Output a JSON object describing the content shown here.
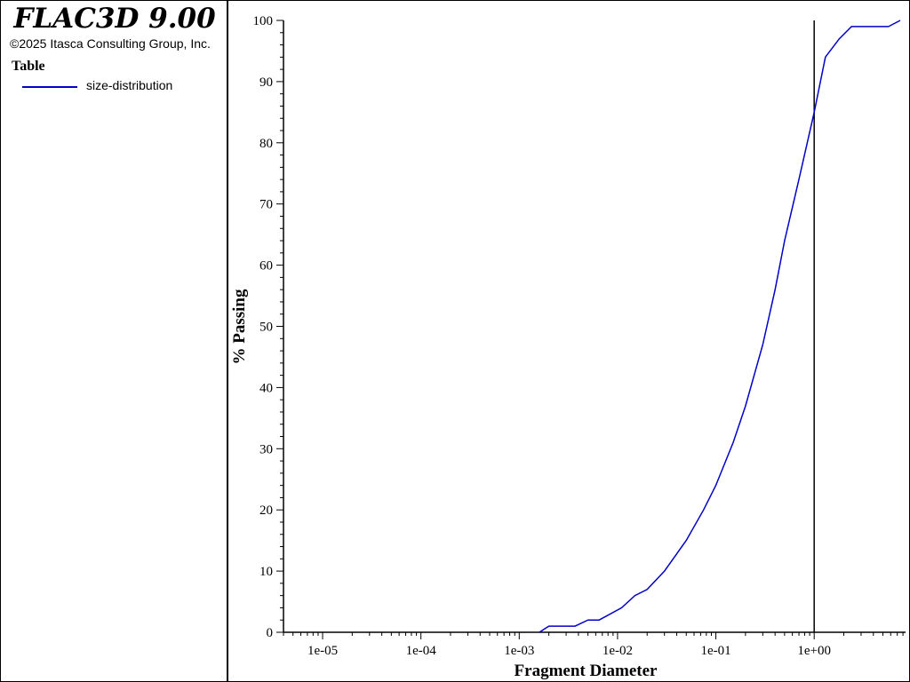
{
  "app": {
    "title": "FLAC3D 9.00",
    "copyright": "©2025 Itasca Consulting Group, Inc."
  },
  "legend": {
    "title": "Table",
    "entries": [
      {
        "label": "size-distribution",
        "color": "#0000c8"
      }
    ]
  },
  "chart_data": {
    "type": "line",
    "xscale": "log",
    "xlabel": "Fragment Diameter",
    "ylabel": "% Passing",
    "xlim": [
      4e-06,
      8.5
    ],
    "ylim": [
      0,
      100
    ],
    "x_ticks": [
      "1e-05",
      "1e-04",
      "1e-03",
      "1e-02",
      "1e-01",
      "1e+00"
    ],
    "x_tick_values": [
      1e-05,
      0.0001,
      0.001,
      0.01,
      0.1,
      1
    ],
    "y_ticks": [
      "0",
      "10",
      "20",
      "30",
      "40",
      "50",
      "60",
      "70",
      "80",
      "90",
      "100"
    ],
    "y_tick_values": [
      0,
      10,
      20,
      30,
      40,
      50,
      60,
      70,
      80,
      90,
      100
    ],
    "grid": false,
    "vertical_marker": {
      "x": 1,
      "color": "#000000"
    },
    "series": [
      {
        "name": "size-distribution",
        "color": "#0000c8",
        "x": [
          0.0016,
          0.002,
          0.0025,
          0.0037,
          0.005,
          0.0065,
          0.011,
          0.015,
          0.02,
          0.03,
          0.05,
          0.075,
          0.1,
          0.15,
          0.2,
          0.3,
          0.4,
          0.5,
          0.7,
          1.0,
          1.3,
          1.8,
          2.4,
          3.5,
          5.7,
          7.5
        ],
        "y": [
          0,
          1,
          1,
          1,
          2,
          2,
          4,
          6,
          7,
          10,
          15,
          20,
          24,
          31,
          37,
          47,
          56,
          64,
          74,
          85,
          94,
          97,
          99,
          99,
          99,
          100
        ]
      }
    ]
  }
}
